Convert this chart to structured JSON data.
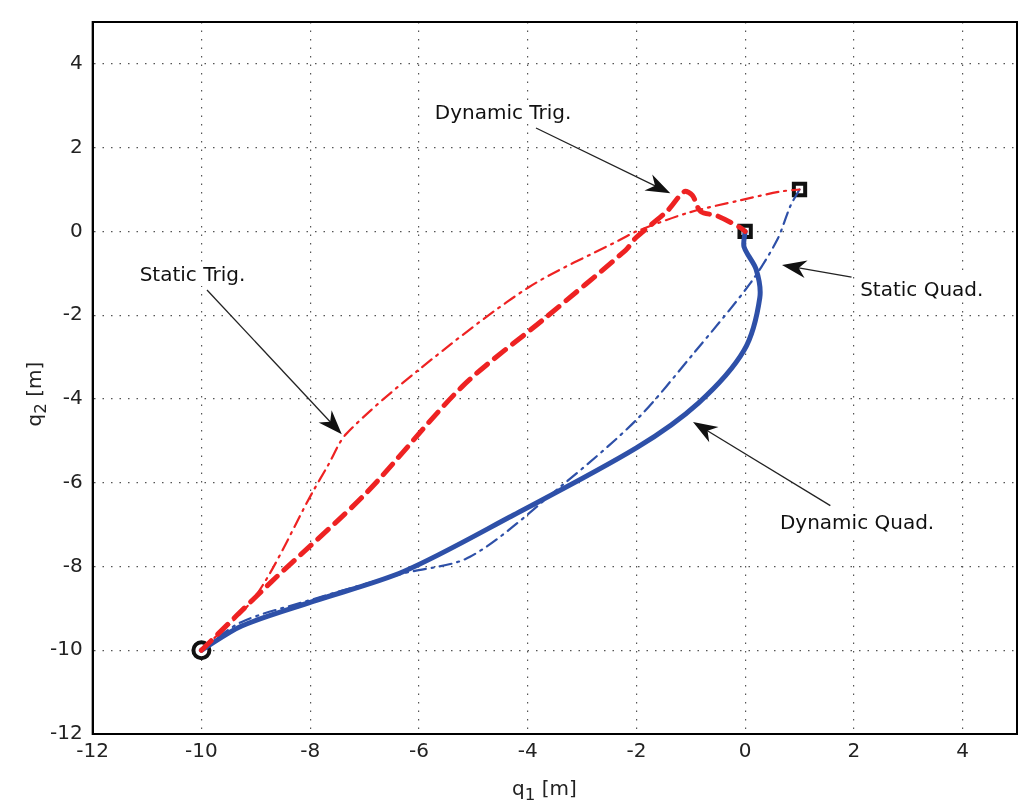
{
  "chart_data": {
    "type": "line",
    "xlabel": "q$_{1}$ [m]",
    "ylabel": "q$_{2}$ [m]",
    "xlim": [
      -12,
      5
    ],
    "ylim": [
      -12,
      5
    ],
    "xticks": [
      -12,
      -10,
      -8,
      -6,
      -4,
      -2,
      0,
      2,
      4
    ],
    "yticks": [
      -12,
      -10,
      -8,
      -6,
      -4,
      -2,
      0,
      2,
      4
    ],
    "grid": true,
    "legend": false,
    "series": [
      {
        "color": "#ee2222",
        "line_style": "dashdot",
        "x": [
          -10,
          -9,
          -7.97,
          -7.66,
          -7.34,
          -6,
          -4,
          -2.3,
          -2,
          -1.06,
          -0.1,
          0.64,
          1
        ],
        "values": [
          -10,
          -8.7,
          -6.26,
          -5.56,
          -4.84,
          -3.3,
          -1.35,
          -0.2,
          0,
          0.44,
          0.74,
          0.95,
          1
        ]
      },
      {
        "color": "#ee2222",
        "line_style": "dashed",
        "x": [
          -10,
          -8.7,
          -6.98,
          -5.2,
          -3.68,
          -2.2,
          -2,
          -1.43,
          -1.12,
          -0.97,
          -0.82,
          -0.51,
          -0.09,
          0
        ],
        "values": [
          -10,
          -8.35,
          -6.26,
          -3.7,
          -2.07,
          -0.45,
          -0.14,
          0.49,
          0.95,
          0.86,
          0.48,
          0.37,
          0.09,
          0
        ]
      },
      {
        "color": "#2e50a8",
        "line_style": "dashdot",
        "x": [
          1,
          0.83,
          0.59,
          0.1,
          -0.94,
          -2,
          -3.4,
          -5.06,
          -6.3,
          -8.1,
          -9.27,
          -10
        ],
        "values": [
          1,
          0.6,
          -0.2,
          -1.23,
          -2.9,
          -4.5,
          -6.1,
          -7.77,
          -8.17,
          -8.84,
          -9.33,
          -10
        ]
      },
      {
        "color": "#2e50a8",
        "line_style": "solid",
        "x": [
          -10,
          -9.26,
          -7.96,
          -6.28,
          -4.3,
          -2,
          -0.86,
          -0.02,
          0.27,
          0.2,
          -0.02,
          0
        ],
        "values": [
          -10,
          -9.42,
          -8.84,
          -8.12,
          -6.8,
          -5.17,
          -4.1,
          -2.84,
          -1.58,
          -0.9,
          -0.37,
          0
        ]
      },
      {
        "type": "scatter",
        "marker": "circle",
        "color": "#111111",
        "x": [
          -10
        ],
        "values": [
          -10
        ]
      },
      {
        "type": "scatter",
        "marker": "square",
        "color": "#111111",
        "x": [
          0,
          1
        ],
        "values": [
          0,
          1
        ]
      }
    ],
    "annotations": [
      "Static Trig.",
      "Dynamic Trig.",
      "Static Quad.",
      "Dynamic Quad."
    ]
  }
}
